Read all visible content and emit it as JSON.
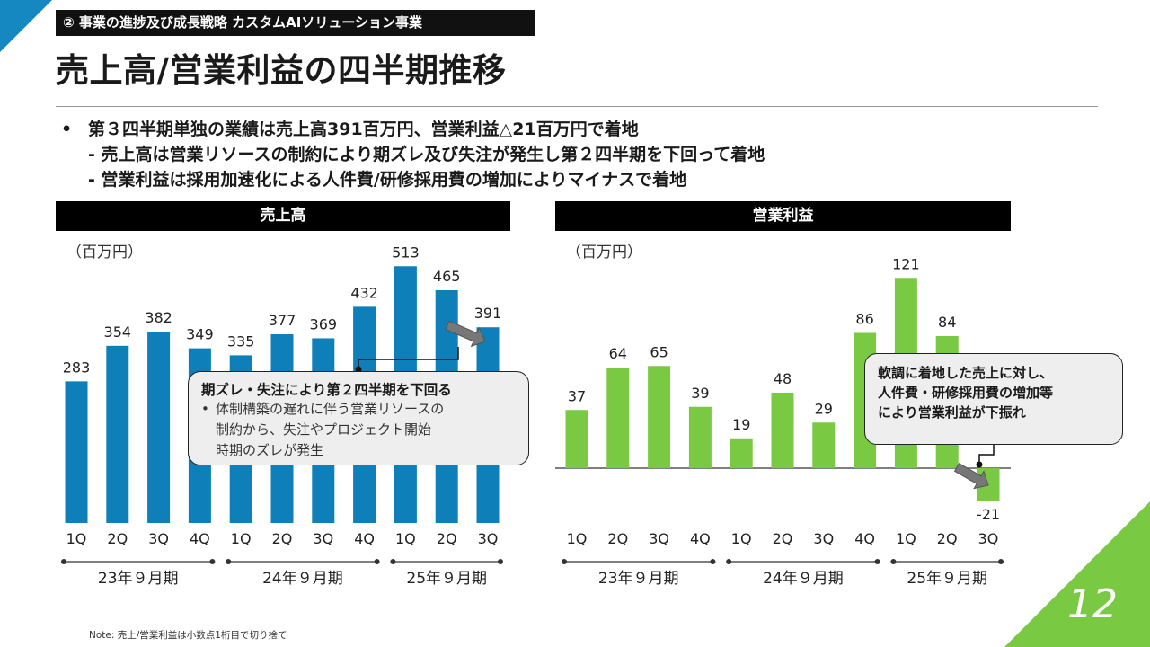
{
  "section_tag": "② 事業の進捗及び成長戦略 カスタムAIソリューション事業",
  "page_title": "売上高/営業利益の四半期推移",
  "bullets": {
    "main": "第３四半期単独の業績は売上高391百万円、営業利益△21百万円で着地",
    "sub1": "- 売上高は営業リソースの制約により期ズレ及び失注が発生し第２四半期を下回って着地",
    "sub2": "- 営業利益は採用加速化による人件費/研修採用費の増加によりマイナスで着地"
  },
  "bullet_marker": "•",
  "chart_data": [
    {
      "type": "bar",
      "title": "売上高",
      "unit_label": "（百万円）",
      "color": "#0e7fb8",
      "categories": [
        "1Q",
        "2Q",
        "3Q",
        "4Q",
        "1Q",
        "2Q",
        "3Q",
        "4Q",
        "1Q",
        "2Q",
        "3Q"
      ],
      "values": [
        283,
        354,
        382,
        349,
        335,
        377,
        369,
        432,
        513,
        465,
        391
      ],
      "groups": [
        "23年９月期",
        "24年９月期",
        "25年９月期"
      ]
    },
    {
      "type": "bar",
      "title": "営業利益",
      "unit_label": "（百万円）",
      "color": "#7ac943",
      "categories": [
        "1Q",
        "2Q",
        "3Q",
        "4Q",
        "1Q",
        "2Q",
        "3Q",
        "4Q",
        "1Q",
        "2Q",
        "3Q"
      ],
      "values": [
        37,
        64,
        65,
        39,
        19,
        48,
        29,
        86,
        121,
        84,
        -21
      ],
      "groups": [
        "23年９月期",
        "24年９月期",
        "25年９月期"
      ]
    }
  ],
  "callout_left": {
    "title": "期ズレ・失注により第２四半期を下回る",
    "bullet": "•",
    "body_line1": "体制構築の遅れに伴う営業リソースの",
    "body_line2": "制約から、失注やプロジェクト開始",
    "body_line3": "時期のズレが発生"
  },
  "callout_right": {
    "line1": "軟調に着地した売上に対し、",
    "line2": "人件費・研修採用費の増加等",
    "line3": "により営業利益が下振れ"
  },
  "note": "Note: 売上/営業利益は小数点1桁目で切り捨て",
  "page_number": "12",
  "colors": {
    "accent_blue": "#1588c2",
    "accent_green": "#7ac943",
    "revenue_bar": "#0e7fb8",
    "profit_bar": "#7ac943"
  }
}
